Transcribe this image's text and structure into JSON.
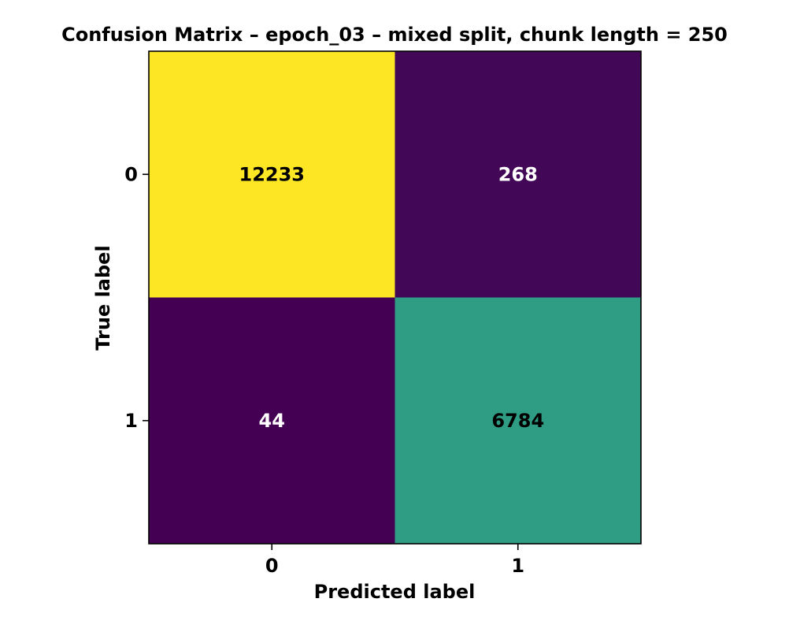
{
  "chart_data": {
    "type": "heatmap",
    "title": "Confusion Matrix – epoch_03 – mixed split, chunk length = 250",
    "xlabel": "Predicted label",
    "ylabel": "True label",
    "x_ticks": [
      "0",
      "1"
    ],
    "y_ticks": [
      "0",
      "1"
    ],
    "matrix": [
      [
        12233,
        268
      ],
      [
        44,
        6784
      ]
    ],
    "colormap": "viridis",
    "colorbar": false,
    "colors": {
      "low": "#440154",
      "mid": "#21918c",
      "high": "#fde725",
      "text_on_dark": "#ffffff",
      "text_on_light": "#000000"
    }
  }
}
